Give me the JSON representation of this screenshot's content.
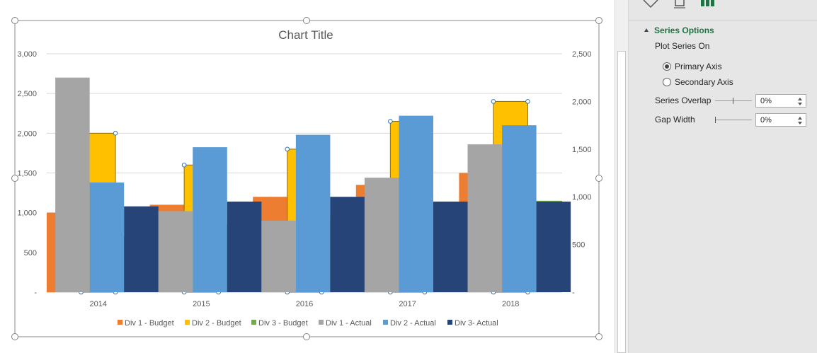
{
  "chart_data": {
    "type": "bar",
    "title": "Chart Title",
    "categories": [
      "2014",
      "2015",
      "2016",
      "2017",
      "2018"
    ],
    "series": [
      {
        "name": "Div 1 - Budget",
        "axis": "primary",
        "color": "#ED7D31",
        "values": [
          1000,
          1100,
          1200,
          1350,
          1500
        ]
      },
      {
        "name": "Div 2 - Budget",
        "axis": "primary",
        "color": "#FFC000",
        "selected": true,
        "values": [
          2000,
          1600,
          1800,
          2150,
          2400
        ]
      },
      {
        "name": "Div 3 - Budget",
        "axis": "primary",
        "color": "#70AD47",
        "values": [
          700,
          850,
          950,
          1050,
          1150
        ]
      },
      {
        "name": "Div 1 - Actual",
        "axis": "secondary",
        "color": "#A5A5A5",
        "values": [
          2250,
          850,
          750,
          1200,
          1550
        ]
      },
      {
        "name": "Div 2 - Actual",
        "axis": "secondary",
        "color": "#5B9BD5",
        "values": [
          1150,
          1520,
          1650,
          1850,
          1750
        ]
      },
      {
        "name": "Div 3- Actual",
        "axis": "secondary",
        "color": "#264478",
        "values": [
          900,
          950,
          1000,
          950,
          950
        ]
      }
    ],
    "y_primary": {
      "range": [
        0,
        3000
      ],
      "ticks": [
        "-",
        "500",
        "1,000",
        "1,500",
        "2,000",
        "2,500",
        "3,000"
      ]
    },
    "y_secondary": {
      "range": [
        0,
        2500
      ],
      "ticks": [
        "-",
        "500",
        "1,000",
        "1,500",
        "2,000",
        "2,500"
      ]
    },
    "grid": true,
    "legend_position": "bottom"
  },
  "format_pane": {
    "section_title": "Series Options",
    "plot_series_on_label": "Plot Series On",
    "primary_axis_label": "Primary Axis",
    "secondary_axis_label": "Secondary Axis",
    "selected_axis": "primary",
    "series_overlap_label": "Series Overlap",
    "series_overlap_value": "0%",
    "gap_width_label": "Gap Width",
    "gap_width_value": "0%",
    "accent_color": "#217346"
  }
}
